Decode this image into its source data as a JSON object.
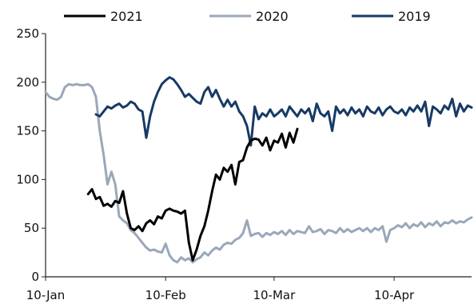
{
  "chart_data": {
    "type": "line",
    "title": "",
    "xlabel": "",
    "ylabel": "",
    "ylim": [
      0,
      250
    ],
    "yticks": [
      0,
      50,
      100,
      150,
      200,
      250
    ],
    "xlim": [
      "2021-01-10",
      "2021-04-30"
    ],
    "xticks": [
      {
        "date": "2021-01-10",
        "label": "10-Jan"
      },
      {
        "date": "2021-02-10",
        "label": "10-Feb"
      },
      {
        "date": "2021-03-10",
        "label": "10-Mar"
      },
      {
        "date": "2021-04-10",
        "label": "10-Apr"
      }
    ],
    "grid": false,
    "legend_position": "top",
    "series": [
      {
        "name": "2021",
        "color": "#000000",
        "points": [
          [
            "2021-01-21",
            85
          ],
          [
            "2021-01-22",
            90
          ],
          [
            "2021-01-23",
            80
          ],
          [
            "2021-01-24",
            82
          ],
          [
            "2021-01-25",
            73
          ],
          [
            "2021-01-26",
            75
          ],
          [
            "2021-01-27",
            72
          ],
          [
            "2021-01-28",
            78
          ],
          [
            "2021-01-29",
            76
          ],
          [
            "2021-01-30",
            88
          ],
          [
            "2021-01-31",
            65
          ],
          [
            "2021-02-01",
            50
          ],
          [
            "2021-02-02",
            48
          ],
          [
            "2021-02-03",
            52
          ],
          [
            "2021-02-04",
            47
          ],
          [
            "2021-02-05",
            55
          ],
          [
            "2021-02-06",
            58
          ],
          [
            "2021-02-07",
            54
          ],
          [
            "2021-02-08",
            62
          ],
          [
            "2021-02-09",
            60
          ],
          [
            "2021-02-10",
            68
          ],
          [
            "2021-02-11",
            70
          ],
          [
            "2021-02-12",
            68
          ],
          [
            "2021-02-13",
            67
          ],
          [
            "2021-02-14",
            65
          ],
          [
            "2021-02-15",
            68
          ],
          [
            "2021-02-16",
            35
          ],
          [
            "2021-02-17",
            17
          ],
          [
            "2021-02-18",
            28
          ],
          [
            "2021-02-19",
            42
          ],
          [
            "2021-02-20",
            52
          ],
          [
            "2021-02-21",
            68
          ],
          [
            "2021-02-22",
            88
          ],
          [
            "2021-02-23",
            105
          ],
          [
            "2021-02-24",
            100
          ],
          [
            "2021-02-25",
            112
          ],
          [
            "2021-02-26",
            108
          ],
          [
            "2021-02-27",
            115
          ],
          [
            "2021-02-28",
            95
          ],
          [
            "2021-03-01",
            118
          ],
          [
            "2021-03-02",
            120
          ],
          [
            "2021-03-03",
            133
          ],
          [
            "2021-03-04",
            140
          ],
          [
            "2021-03-05",
            142
          ],
          [
            "2021-03-06",
            141
          ],
          [
            "2021-03-07",
            135
          ],
          [
            "2021-03-08",
            143
          ],
          [
            "2021-03-09",
            130
          ],
          [
            "2021-03-10",
            140
          ],
          [
            "2021-03-11",
            138
          ],
          [
            "2021-03-12",
            147
          ],
          [
            "2021-03-13",
            133
          ],
          [
            "2021-03-14",
            148
          ],
          [
            "2021-03-15",
            138
          ],
          [
            "2021-03-16",
            152
          ]
        ]
      },
      {
        "name": "2020",
        "color": "#9aa8b8",
        "points": [
          [
            "2021-01-10",
            190
          ],
          [
            "2021-01-11",
            185
          ],
          [
            "2021-01-12",
            183
          ],
          [
            "2021-01-13",
            182
          ],
          [
            "2021-01-14",
            185
          ],
          [
            "2021-01-15",
            195
          ],
          [
            "2021-01-16",
            198
          ],
          [
            "2021-01-17",
            197
          ],
          [
            "2021-01-18",
            198
          ],
          [
            "2021-01-19",
            197
          ],
          [
            "2021-01-20",
            197
          ],
          [
            "2021-01-21",
            198
          ],
          [
            "2021-01-22",
            195
          ],
          [
            "2021-01-23",
            185
          ],
          [
            "2021-01-24",
            150
          ],
          [
            "2021-01-25",
            125
          ],
          [
            "2021-01-26",
            95
          ],
          [
            "2021-01-27",
            108
          ],
          [
            "2021-01-28",
            95
          ],
          [
            "2021-01-29",
            62
          ],
          [
            "2021-01-30",
            58
          ],
          [
            "2021-01-31",
            55
          ],
          [
            "2021-02-01",
            48
          ],
          [
            "2021-02-02",
            45
          ],
          [
            "2021-02-03",
            40
          ],
          [
            "2021-02-04",
            35
          ],
          [
            "2021-02-05",
            30
          ],
          [
            "2021-02-06",
            27
          ],
          [
            "2021-02-07",
            28
          ],
          [
            "2021-02-08",
            26
          ],
          [
            "2021-02-09",
            25
          ],
          [
            "2021-02-10",
            34
          ],
          [
            "2021-02-11",
            22
          ],
          [
            "2021-02-12",
            17
          ],
          [
            "2021-02-13",
            15
          ],
          [
            "2021-02-14",
            20
          ],
          [
            "2021-02-15",
            17
          ],
          [
            "2021-02-16",
            19
          ],
          [
            "2021-02-17",
            15
          ],
          [
            "2021-02-18",
            18
          ],
          [
            "2021-02-19",
            20
          ],
          [
            "2021-02-20",
            25
          ],
          [
            "2021-02-21",
            22
          ],
          [
            "2021-02-22",
            27
          ],
          [
            "2021-02-23",
            30
          ],
          [
            "2021-02-24",
            28
          ],
          [
            "2021-02-25",
            33
          ],
          [
            "2021-02-26",
            35
          ],
          [
            "2021-02-27",
            34
          ],
          [
            "2021-02-28",
            38
          ],
          [
            "2021-03-01",
            40
          ],
          [
            "2021-03-02",
            45
          ],
          [
            "2021-03-03",
            58
          ],
          [
            "2021-03-04",
            42
          ],
          [
            "2021-03-05",
            44
          ],
          [
            "2021-03-06",
            45
          ],
          [
            "2021-03-07",
            41
          ],
          [
            "2021-03-08",
            45
          ],
          [
            "2021-03-09",
            43
          ],
          [
            "2021-03-10",
            46
          ],
          [
            "2021-03-11",
            44
          ],
          [
            "2021-03-12",
            47
          ],
          [
            "2021-03-13",
            43
          ],
          [
            "2021-03-14",
            48
          ],
          [
            "2021-03-15",
            44
          ],
          [
            "2021-03-16",
            47
          ],
          [
            "2021-03-17",
            46
          ],
          [
            "2021-03-18",
            45
          ],
          [
            "2021-03-19",
            52
          ],
          [
            "2021-03-20",
            46
          ],
          [
            "2021-03-21",
            47
          ],
          [
            "2021-03-22",
            49
          ],
          [
            "2021-03-23",
            44
          ],
          [
            "2021-03-24",
            48
          ],
          [
            "2021-03-25",
            47
          ],
          [
            "2021-03-26",
            45
          ],
          [
            "2021-03-27",
            50
          ],
          [
            "2021-03-28",
            46
          ],
          [
            "2021-03-29",
            49
          ],
          [
            "2021-03-30",
            46
          ],
          [
            "2021-03-31",
            48
          ],
          [
            "2021-04-01",
            50
          ],
          [
            "2021-04-02",
            47
          ],
          [
            "2021-04-03",
            50
          ],
          [
            "2021-04-04",
            46
          ],
          [
            "2021-04-05",
            50
          ],
          [
            "2021-04-06",
            48
          ],
          [
            "2021-04-07",
            52
          ],
          [
            "2021-04-08",
            36
          ],
          [
            "2021-04-09",
            48
          ],
          [
            "2021-04-10",
            50
          ],
          [
            "2021-04-11",
            53
          ],
          [
            "2021-04-12",
            51
          ],
          [
            "2021-04-13",
            55
          ],
          [
            "2021-04-14",
            50
          ],
          [
            "2021-04-15",
            54
          ],
          [
            "2021-04-16",
            52
          ],
          [
            "2021-04-17",
            56
          ],
          [
            "2021-04-18",
            51
          ],
          [
            "2021-04-19",
            55
          ],
          [
            "2021-04-20",
            53
          ],
          [
            "2021-04-21",
            57
          ],
          [
            "2021-04-22",
            52
          ],
          [
            "2021-04-23",
            56
          ],
          [
            "2021-04-24",
            55
          ],
          [
            "2021-04-25",
            58
          ],
          [
            "2021-04-26",
            55
          ],
          [
            "2021-04-27",
            57
          ],
          [
            "2021-04-28",
            56
          ],
          [
            "2021-04-29",
            59
          ],
          [
            "2021-04-30",
            61
          ]
        ]
      },
      {
        "name": "2019",
        "color": "#173a66",
        "points": [
          [
            "2021-01-23",
            167
          ],
          [
            "2021-01-24",
            165
          ],
          [
            "2021-01-25",
            170
          ],
          [
            "2021-01-26",
            175
          ],
          [
            "2021-01-27",
            173
          ],
          [
            "2021-01-28",
            176
          ],
          [
            "2021-01-29",
            178
          ],
          [
            "2021-01-30",
            174
          ],
          [
            "2021-01-31",
            176
          ],
          [
            "2021-02-01",
            180
          ],
          [
            "2021-02-02",
            178
          ],
          [
            "2021-02-03",
            172
          ],
          [
            "2021-02-04",
            170
          ],
          [
            "2021-02-05",
            143
          ],
          [
            "2021-02-06",
            165
          ],
          [
            "2021-02-07",
            180
          ],
          [
            "2021-02-08",
            190
          ],
          [
            "2021-02-09",
            198
          ],
          [
            "2021-02-10",
            202
          ],
          [
            "2021-02-11",
            205
          ],
          [
            "2021-02-12",
            203
          ],
          [
            "2021-02-13",
            198
          ],
          [
            "2021-02-14",
            192
          ],
          [
            "2021-02-15",
            185
          ],
          [
            "2021-02-16",
            188
          ],
          [
            "2021-02-17",
            184
          ],
          [
            "2021-02-18",
            180
          ],
          [
            "2021-02-19",
            178
          ],
          [
            "2021-02-20",
            190
          ],
          [
            "2021-02-21",
            195
          ],
          [
            "2021-02-22",
            185
          ],
          [
            "2021-02-23",
            192
          ],
          [
            "2021-02-24",
            183
          ],
          [
            "2021-02-25",
            175
          ],
          [
            "2021-02-26",
            182
          ],
          [
            "2021-02-27",
            175
          ],
          [
            "2021-02-28",
            180
          ],
          [
            "2021-03-01",
            170
          ],
          [
            "2021-03-02",
            165
          ],
          [
            "2021-03-03",
            155
          ],
          [
            "2021-03-04",
            135
          ],
          [
            "2021-03-05",
            175
          ],
          [
            "2021-03-06",
            162
          ],
          [
            "2021-03-07",
            168
          ],
          [
            "2021-03-08",
            165
          ],
          [
            "2021-03-09",
            172
          ],
          [
            "2021-03-10",
            165
          ],
          [
            "2021-03-11",
            168
          ],
          [
            "2021-03-12",
            172
          ],
          [
            "2021-03-13",
            165
          ],
          [
            "2021-03-14",
            175
          ],
          [
            "2021-03-15",
            170
          ],
          [
            "2021-03-16",
            165
          ],
          [
            "2021-03-17",
            172
          ],
          [
            "2021-03-18",
            168
          ],
          [
            "2021-03-19",
            173
          ],
          [
            "2021-03-20",
            160
          ],
          [
            "2021-03-21",
            178
          ],
          [
            "2021-03-22",
            168
          ],
          [
            "2021-03-23",
            165
          ],
          [
            "2021-03-24",
            170
          ],
          [
            "2021-03-25",
            150
          ],
          [
            "2021-03-26",
            175
          ],
          [
            "2021-03-27",
            168
          ],
          [
            "2021-03-28",
            172
          ],
          [
            "2021-03-29",
            166
          ],
          [
            "2021-03-30",
            174
          ],
          [
            "2021-03-31",
            168
          ],
          [
            "2021-04-01",
            172
          ],
          [
            "2021-04-02",
            165
          ],
          [
            "2021-04-03",
            175
          ],
          [
            "2021-04-04",
            170
          ],
          [
            "2021-04-05",
            168
          ],
          [
            "2021-04-06",
            174
          ],
          [
            "2021-04-07",
            166
          ],
          [
            "2021-04-08",
            172
          ],
          [
            "2021-04-09",
            175
          ],
          [
            "2021-04-10",
            170
          ],
          [
            "2021-04-11",
            168
          ],
          [
            "2021-04-12",
            172
          ],
          [
            "2021-04-13",
            166
          ],
          [
            "2021-04-14",
            174
          ],
          [
            "2021-04-15",
            170
          ],
          [
            "2021-04-16",
            176
          ],
          [
            "2021-04-17",
            170
          ],
          [
            "2021-04-18",
            180
          ],
          [
            "2021-04-19",
            155
          ],
          [
            "2021-04-20",
            175
          ],
          [
            "2021-04-21",
            172
          ],
          [
            "2021-04-22",
            168
          ],
          [
            "2021-04-23",
            176
          ],
          [
            "2021-04-24",
            172
          ],
          [
            "2021-04-25",
            183
          ],
          [
            "2021-04-26",
            165
          ],
          [
            "2021-04-27",
            178
          ],
          [
            "2021-04-28",
            170
          ],
          [
            "2021-04-29",
            176
          ],
          [
            "2021-04-30",
            174
          ]
        ]
      }
    ]
  }
}
